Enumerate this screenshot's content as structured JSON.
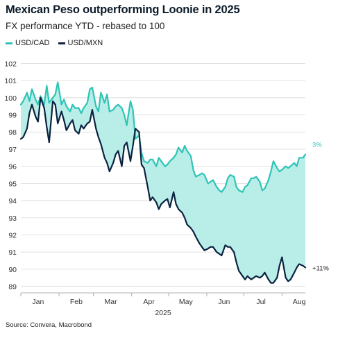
{
  "title": "Mexican Peso outperforming Loonie in 2025",
  "subtitle": "FX performance YTD - rebased to 100",
  "source": "Source: Convera, Macrobond",
  "colors": {
    "usdcad": "#2ec4b6",
    "usdmxn": "#0b2340",
    "fill": "#b8ede8",
    "grid": "#d9d9d9"
  },
  "chart_data": {
    "type": "line",
    "xlabel": "2025",
    "ylabel": "",
    "ylim": [
      88.7,
      102.3
    ],
    "yticks": [
      89,
      90,
      91,
      92,
      93,
      94,
      95,
      96,
      97,
      98,
      99,
      100,
      101,
      102
    ],
    "x_months": [
      "Jan",
      "Feb",
      "Mar",
      "Apr",
      "May",
      "Jun",
      "Jul",
      "Aug"
    ],
    "x_domain": [
      "2025-01-01",
      "2025-08-20"
    ],
    "fill_between": true,
    "grid": "horizontal",
    "legend_position": "top-left",
    "annotations": [
      {
        "series": "USD/CAD",
        "text": "3%"
      },
      {
        "series": "USD/MXN",
        "text": "+11%"
      }
    ],
    "series": [
      {
        "name": "USD/CAD",
        "points": [
          [
            "2025-01-01",
            99.6
          ],
          [
            "2025-01-03",
            99.8
          ],
          [
            "2025-01-06",
            100.3
          ],
          [
            "2025-01-08",
            99.8
          ],
          [
            "2025-01-10",
            100.5
          ],
          [
            "2025-01-13",
            99.9
          ],
          [
            "2025-01-15",
            99.6
          ],
          [
            "2025-01-17",
            100.1
          ],
          [
            "2025-01-20",
            99.6
          ],
          [
            "2025-01-22",
            100.7
          ],
          [
            "2025-01-24",
            99.7
          ],
          [
            "2025-01-27",
            100.0
          ],
          [
            "2025-01-29",
            100.2
          ],
          [
            "2025-01-31",
            100.9
          ],
          [
            "2025-02-03",
            99.6
          ],
          [
            "2025-02-05",
            99.9
          ],
          [
            "2025-02-07",
            99.5
          ],
          [
            "2025-02-10",
            99.2
          ],
          [
            "2025-02-12",
            99.6
          ],
          [
            "2025-02-14",
            99.4
          ],
          [
            "2025-02-17",
            99.4
          ],
          [
            "2025-02-19",
            99.1
          ],
          [
            "2025-02-21",
            99.4
          ],
          [
            "2025-02-24",
            99.7
          ],
          [
            "2025-02-26",
            100.5
          ],
          [
            "2025-02-28",
            100.6
          ],
          [
            "2025-03-03",
            99.5
          ],
          [
            "2025-03-05",
            99.2
          ],
          [
            "2025-03-07",
            100.3
          ],
          [
            "2025-03-10",
            99.7
          ],
          [
            "2025-03-12",
            100.2
          ],
          [
            "2025-03-14",
            99.2
          ],
          [
            "2025-03-17",
            99.3
          ],
          [
            "2025-03-19",
            99.5
          ],
          [
            "2025-03-21",
            99.6
          ],
          [
            "2025-03-24",
            99.4
          ],
          [
            "2025-03-26",
            99.0
          ],
          [
            "2025-03-28",
            98.4
          ],
          [
            "2025-03-31",
            99.8
          ],
          [
            "2025-04-02",
            99.3
          ],
          [
            "2025-04-04",
            97.6
          ],
          [
            "2025-04-07",
            97.8
          ],
          [
            "2025-04-09",
            96.8
          ],
          [
            "2025-04-11",
            96.3
          ],
          [
            "2025-04-14",
            96.2
          ],
          [
            "2025-04-16",
            96.4
          ],
          [
            "2025-04-18",
            96.4
          ],
          [
            "2025-04-21",
            96.0
          ],
          [
            "2025-04-23",
            96.5
          ],
          [
            "2025-04-25",
            96.3
          ],
          [
            "2025-04-28",
            96.0
          ],
          [
            "2025-04-30",
            96.1
          ],
          [
            "2025-05-02",
            96.3
          ],
          [
            "2025-05-05",
            96.5
          ],
          [
            "2025-05-07",
            96.7
          ],
          [
            "2025-05-09",
            97.1
          ],
          [
            "2025-05-12",
            96.8
          ],
          [
            "2025-05-14",
            97.2
          ],
          [
            "2025-05-16",
            96.9
          ],
          [
            "2025-05-19",
            96.6
          ],
          [
            "2025-05-21",
            95.8
          ],
          [
            "2025-05-23",
            95.4
          ],
          [
            "2025-05-26",
            95.5
          ],
          [
            "2025-05-28",
            95.6
          ],
          [
            "2025-05-30",
            95.5
          ],
          [
            "2025-06-02",
            95.0
          ],
          [
            "2025-06-04",
            95.1
          ],
          [
            "2025-06-06",
            95.2
          ],
          [
            "2025-06-09",
            94.8
          ],
          [
            "2025-06-11",
            94.6
          ],
          [
            "2025-06-13",
            94.5
          ],
          [
            "2025-06-16",
            94.8
          ],
          [
            "2025-06-18",
            95.3
          ],
          [
            "2025-06-20",
            95.5
          ],
          [
            "2025-06-23",
            95.4
          ],
          [
            "2025-06-25",
            94.8
          ],
          [
            "2025-06-27",
            94.6
          ],
          [
            "2025-06-30",
            94.5
          ],
          [
            "2025-07-02",
            94.8
          ],
          [
            "2025-07-04",
            94.9
          ],
          [
            "2025-07-07",
            95.3
          ],
          [
            "2025-07-09",
            95.3
          ],
          [
            "2025-07-11",
            95.4
          ],
          [
            "2025-07-14",
            95.1
          ],
          [
            "2025-07-16",
            94.6
          ],
          [
            "2025-07-18",
            94.7
          ],
          [
            "2025-07-21",
            95.2
          ],
          [
            "2025-07-23",
            95.7
          ],
          [
            "2025-07-25",
            96.3
          ],
          [
            "2025-07-28",
            95.9
          ],
          [
            "2025-07-30",
            95.7
          ],
          [
            "2025-08-01",
            95.8
          ],
          [
            "2025-08-04",
            96.0
          ],
          [
            "2025-08-06",
            95.9
          ],
          [
            "2025-08-08",
            96.0
          ],
          [
            "2025-08-11",
            96.2
          ],
          [
            "2025-08-13",
            96.0
          ],
          [
            "2025-08-15",
            96.5
          ],
          [
            "2025-08-18",
            96.5
          ],
          [
            "2025-08-20",
            96.7
          ]
        ]
      },
      {
        "name": "USD/MXN",
        "points": [
          [
            "2025-01-01",
            97.6
          ],
          [
            "2025-01-03",
            97.7
          ],
          [
            "2025-01-06",
            98.2
          ],
          [
            "2025-01-08",
            99.1
          ],
          [
            "2025-01-10",
            99.6
          ],
          [
            "2025-01-13",
            98.9
          ],
          [
            "2025-01-15",
            98.6
          ],
          [
            "2025-01-17",
            100.0
          ],
          [
            "2025-01-20",
            99.4
          ],
          [
            "2025-01-22",
            98.3
          ],
          [
            "2025-01-24",
            97.4
          ],
          [
            "2025-01-27",
            99.8
          ],
          [
            "2025-01-29",
            99.6
          ],
          [
            "2025-01-31",
            98.5
          ],
          [
            "2025-02-03",
            99.2
          ],
          [
            "2025-02-05",
            98.7
          ],
          [
            "2025-02-07",
            98.1
          ],
          [
            "2025-02-10",
            98.5
          ],
          [
            "2025-02-12",
            98.7
          ],
          [
            "2025-02-14",
            98.1
          ],
          [
            "2025-02-17",
            97.9
          ],
          [
            "2025-02-19",
            98.4
          ],
          [
            "2025-02-21",
            98.2
          ],
          [
            "2025-02-24",
            98.5
          ],
          [
            "2025-02-26",
            98.6
          ],
          [
            "2025-02-28",
            99.3
          ],
          [
            "2025-03-03",
            98.2
          ],
          [
            "2025-03-05",
            97.7
          ],
          [
            "2025-03-07",
            97.3
          ],
          [
            "2025-03-10",
            96.5
          ],
          [
            "2025-03-12",
            96.2
          ],
          [
            "2025-03-14",
            95.7
          ],
          [
            "2025-03-17",
            96.2
          ],
          [
            "2025-03-19",
            96.7
          ],
          [
            "2025-03-21",
            96.9
          ],
          [
            "2025-03-24",
            96.0
          ],
          [
            "2025-03-26",
            97.2
          ],
          [
            "2025-03-28",
            97.4
          ],
          [
            "2025-03-31",
            96.3
          ],
          [
            "2025-04-02",
            97.2
          ],
          [
            "2025-04-04",
            98.2
          ],
          [
            "2025-04-07",
            98.0
          ],
          [
            "2025-04-09",
            96.1
          ],
          [
            "2025-04-11",
            95.9
          ],
          [
            "2025-04-14",
            94.8
          ],
          [
            "2025-04-16",
            94.0
          ],
          [
            "2025-04-18",
            94.2
          ],
          [
            "2025-04-21",
            93.9
          ],
          [
            "2025-04-23",
            93.5
          ],
          [
            "2025-04-25",
            93.8
          ],
          [
            "2025-04-28",
            94.0
          ],
          [
            "2025-04-30",
            94.1
          ],
          [
            "2025-05-02",
            93.6
          ],
          [
            "2025-05-05",
            94.5
          ],
          [
            "2025-05-07",
            93.8
          ],
          [
            "2025-05-09",
            93.5
          ],
          [
            "2025-05-12",
            93.3
          ],
          [
            "2025-05-14",
            93.0
          ],
          [
            "2025-05-16",
            92.6
          ],
          [
            "2025-05-19",
            92.4
          ],
          [
            "2025-05-21",
            92.2
          ],
          [
            "2025-05-23",
            91.9
          ],
          [
            "2025-05-26",
            91.5
          ],
          [
            "2025-05-28",
            91.3
          ],
          [
            "2025-05-30",
            91.1
          ],
          [
            "2025-06-02",
            91.2
          ],
          [
            "2025-06-04",
            91.3
          ],
          [
            "2025-06-06",
            91.3
          ],
          [
            "2025-06-09",
            91.0
          ],
          [
            "2025-06-11",
            90.9
          ],
          [
            "2025-06-13",
            90.8
          ],
          [
            "2025-06-16",
            91.4
          ],
          [
            "2025-06-18",
            91.3
          ],
          [
            "2025-06-20",
            91.3
          ],
          [
            "2025-06-23",
            91.0
          ],
          [
            "2025-06-25",
            90.4
          ],
          [
            "2025-06-27",
            89.9
          ],
          [
            "2025-06-30",
            89.6
          ],
          [
            "2025-07-02",
            89.4
          ],
          [
            "2025-07-04",
            89.6
          ],
          [
            "2025-07-07",
            89.4
          ],
          [
            "2025-07-09",
            89.5
          ],
          [
            "2025-07-11",
            89.6
          ],
          [
            "2025-07-14",
            89.5
          ],
          [
            "2025-07-16",
            89.6
          ],
          [
            "2025-07-18",
            89.8
          ],
          [
            "2025-07-21",
            89.4
          ],
          [
            "2025-07-23",
            89.2
          ],
          [
            "2025-07-25",
            89.2
          ],
          [
            "2025-07-28",
            89.5
          ],
          [
            "2025-07-30",
            90.2
          ],
          [
            "2025-08-01",
            90.7
          ],
          [
            "2025-08-04",
            89.5
          ],
          [
            "2025-08-06",
            89.3
          ],
          [
            "2025-08-08",
            89.4
          ],
          [
            "2025-08-11",
            89.8
          ],
          [
            "2025-08-13",
            90.1
          ],
          [
            "2025-08-15",
            90.3
          ],
          [
            "2025-08-18",
            90.2
          ],
          [
            "2025-08-20",
            90.1
          ]
        ]
      }
    ]
  }
}
